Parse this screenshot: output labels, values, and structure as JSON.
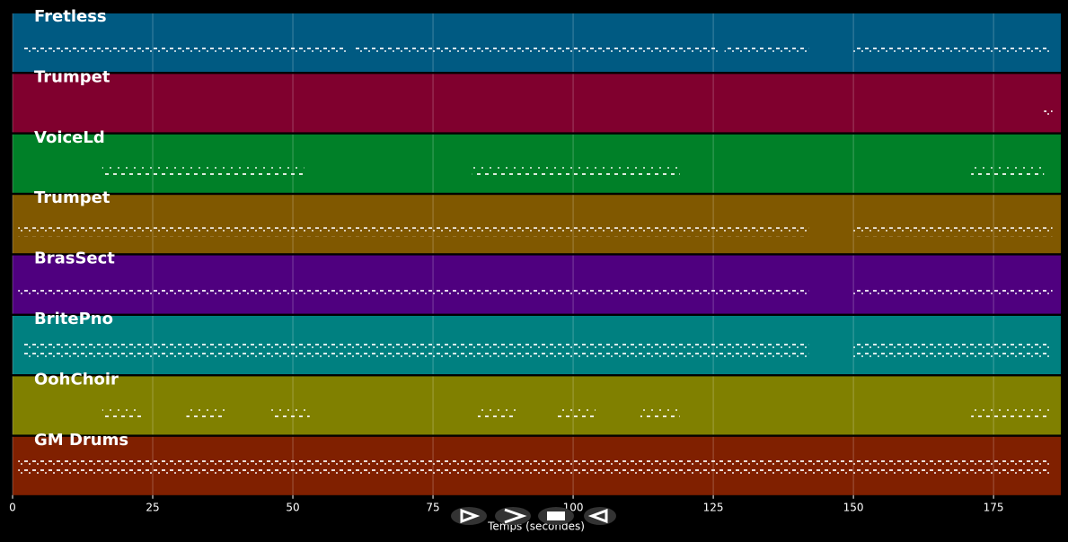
{
  "chart_data": {
    "type": "pianoroll",
    "xlabel": "Temps (secondes)",
    "xlim": [
      0,
      187
    ],
    "xticks": [
      0,
      25,
      50,
      75,
      100,
      125,
      150,
      175
    ],
    "grid": true,
    "series": [
      {
        "name": "Fretless",
        "color": "#005a82",
        "segments": [
          [
            1.8,
            59.5
          ],
          [
            61,
            126
          ],
          [
            127,
            142
          ],
          [
            150,
            185
          ]
        ]
      },
      {
        "name": "Trumpet",
        "color": "#80002e",
        "segments": [
          [
            184,
            185.5
          ]
        ]
      },
      {
        "name": "VoiceLd",
        "color": "#008028",
        "segments": [
          [
            16,
            52
          ],
          [
            82,
            119
          ],
          [
            171,
            184
          ]
        ]
      },
      {
        "name": "Trumpet",
        "color": "#805800",
        "segments": [
          [
            1,
            142
          ],
          [
            150,
            185.5
          ]
        ]
      },
      {
        "name": "BrasSect",
        "color": "#4f007f",
        "segments": [
          [
            1,
            142
          ],
          [
            150,
            185.5
          ]
        ]
      },
      {
        "name": "BritePno",
        "color": "#008080",
        "segments": [
          [
            2,
            142
          ],
          [
            150,
            185
          ]
        ]
      },
      {
        "name": "OohChoir",
        "color": "#808000",
        "segments": [
          [
            16,
            23
          ],
          [
            31,
            38
          ],
          [
            46,
            53
          ],
          [
            83,
            90
          ],
          [
            97,
            104
          ],
          [
            112,
            119
          ],
          [
            171,
            185
          ]
        ]
      },
      {
        "name": "GM Drums",
        "color": "#802000",
        "segments": [
          [
            1,
            185
          ]
        ]
      }
    ]
  }
}
